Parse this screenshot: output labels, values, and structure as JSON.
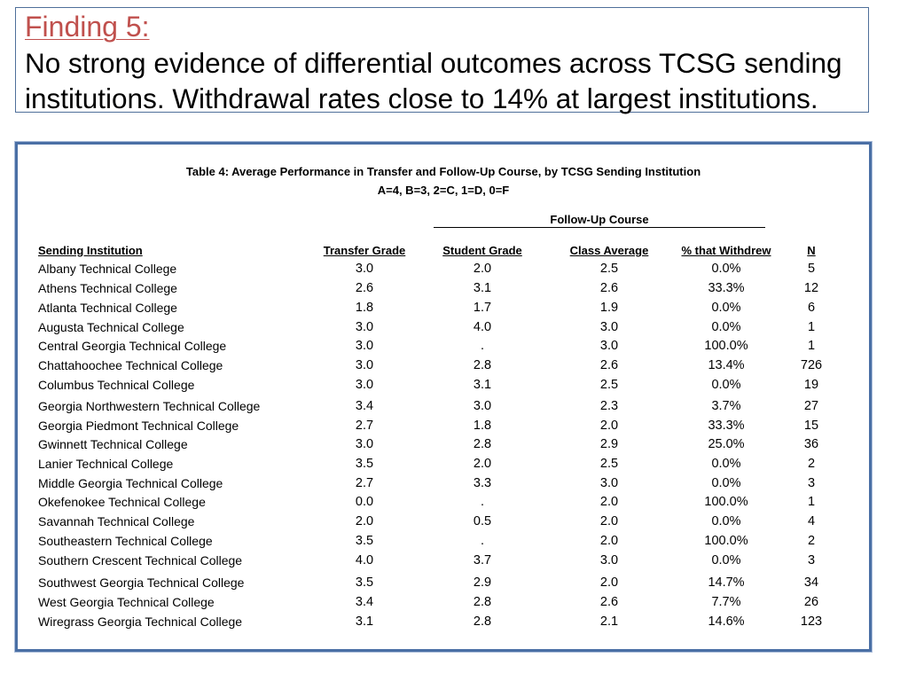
{
  "finding": {
    "label": "Finding 5:",
    "line1": "No strong evidence of differential outcomes across TCSG sending",
    "line2": "institutions. Withdrawal rates close to 14% at largest institutions."
  },
  "table": {
    "caption": "Table 4: Average Performance in Transfer and Follow-Up Course, by TCSG Sending Institution",
    "scale": "A=4, B=3, 2=C, 1=D, 0=F",
    "followup_label": "Follow-Up Course",
    "headers": {
      "institution": "Sending Institution",
      "transfer": "Transfer Grade",
      "student": "Student Grade",
      "class_avg": "Class Average",
      "withdrew": "% that Withdrew",
      "n": "N"
    },
    "rows": [
      {
        "institution": "Albany Technical College",
        "transfer": "3.0",
        "student": "2.0",
        "class_avg": "2.5",
        "withdrew": "0.0%",
        "n": "5"
      },
      {
        "institution": "Athens Technical College",
        "transfer": "2.6",
        "student": "3.1",
        "class_avg": "2.6",
        "withdrew": "33.3%",
        "n": "12"
      },
      {
        "institution": "Atlanta Technical College",
        "transfer": "1.8",
        "student": "1.7",
        "class_avg": "1.9",
        "withdrew": "0.0%",
        "n": "6"
      },
      {
        "institution": "Augusta Technical College",
        "transfer": "3.0",
        "student": "4.0",
        "class_avg": "3.0",
        "withdrew": "0.0%",
        "n": "1"
      },
      {
        "institution": "Central Georgia Technical College",
        "transfer": "3.0",
        "student": ".",
        "class_avg": "3.0",
        "withdrew": "100.0%",
        "n": "1"
      },
      {
        "institution": "Chattahoochee Technical College",
        "transfer": "3.0",
        "student": "2.8",
        "class_avg": "2.6",
        "withdrew": "13.4%",
        "n": "726"
      },
      {
        "institution": "Columbus Technical College",
        "transfer": "3.0",
        "student": "3.1",
        "class_avg": "2.5",
        "withdrew": "0.0%",
        "n": "19"
      },
      {
        "institution": "Georgia Northwestern Technical College",
        "transfer": "3.4",
        "student": "3.0",
        "class_avg": "2.3",
        "withdrew": "3.7%",
        "n": "27"
      },
      {
        "institution": "Georgia Piedmont Technical College",
        "transfer": "2.7",
        "student": "1.8",
        "class_avg": "2.0",
        "withdrew": "33.3%",
        "n": "15"
      },
      {
        "institution": "Gwinnett Technical College",
        "transfer": "3.0",
        "student": "2.8",
        "class_avg": "2.9",
        "withdrew": "25.0%",
        "n": "36"
      },
      {
        "institution": "Lanier Technical College",
        "transfer": "3.5",
        "student": "2.0",
        "class_avg": "2.5",
        "withdrew": "0.0%",
        "n": "2"
      },
      {
        "institution": "Middle Georgia Technical College",
        "transfer": "2.7",
        "student": "3.3",
        "class_avg": "3.0",
        "withdrew": "0.0%",
        "n": "3"
      },
      {
        "institution": "Okefenokee Technical College",
        "transfer": "0.0",
        "student": ".",
        "class_avg": "2.0",
        "withdrew": "100.0%",
        "n": "1"
      },
      {
        "institution": "Savannah Technical College",
        "transfer": "2.0",
        "student": "0.5",
        "class_avg": "2.0",
        "withdrew": "0.0%",
        "n": "4"
      },
      {
        "institution": "Southeastern Technical College",
        "transfer": "3.5",
        "student": ".",
        "class_avg": "2.0",
        "withdrew": "100.0%",
        "n": "2"
      },
      {
        "institution": "Southern Crescent Technical College",
        "transfer": "4.0",
        "student": "3.7",
        "class_avg": "3.0",
        "withdrew": "0.0%",
        "n": "3"
      },
      {
        "institution": "Southwest Georgia Technical College",
        "transfer": "3.5",
        "student": "2.9",
        "class_avg": "2.0",
        "withdrew": "14.7%",
        "n": "34"
      },
      {
        "institution": "West Georgia Technical College",
        "transfer": "3.4",
        "student": "2.8",
        "class_avg": "2.6",
        "withdrew": "7.7%",
        "n": "26"
      },
      {
        "institution": "Wiregrass Georgia Technical College",
        "transfer": "3.1",
        "student": "2.8",
        "class_avg": "2.1",
        "withdrew": "14.6%",
        "n": "123"
      }
    ]
  },
  "colors": {
    "finding_label": "#c0504d",
    "box_border": "#4a6fa5"
  }
}
